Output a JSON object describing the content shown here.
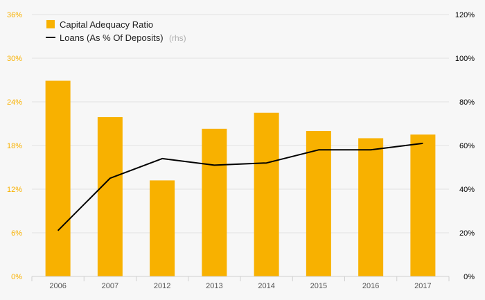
{
  "chart_data": {
    "type": "bar",
    "categories": [
      "2006",
      "2007",
      "2012",
      "2013",
      "2014",
      "2015",
      "2016",
      "2017"
    ],
    "series": [
      {
        "name": "Capital Adequacy Ratio",
        "type": "bar",
        "axis": "left",
        "color": "#f8b100",
        "values": [
          26.9,
          21.9,
          13.2,
          20.3,
          22.5,
          20.0,
          19.0,
          19.5
        ]
      },
      {
        "name": "Loans (As % Of Deposits)",
        "name_note": "(rhs)",
        "type": "line",
        "axis": "right",
        "color": "#000000",
        "values": [
          21,
          45,
          54,
          51,
          52,
          58,
          58,
          61
        ]
      }
    ],
    "y_left": {
      "ylim": [
        0,
        36
      ],
      "ticks": [
        "0%",
        "6%",
        "12%",
        "18%",
        "24%",
        "30%",
        "36%"
      ],
      "tick_values": [
        0,
        6,
        12,
        18,
        24,
        30,
        36
      ],
      "color": "#f8b100"
    },
    "y_right": {
      "ylim": [
        0,
        120
      ],
      "ticks": [
        "0%",
        "20%",
        "40%",
        "60%",
        "80%",
        "100%",
        "120%"
      ],
      "tick_values": [
        0,
        20,
        40,
        60,
        80,
        100,
        120
      ],
      "color": "#000000"
    },
    "grid": true,
    "legend_position": "top-left",
    "title": "",
    "xlabel": "",
    "ylabel": ""
  }
}
